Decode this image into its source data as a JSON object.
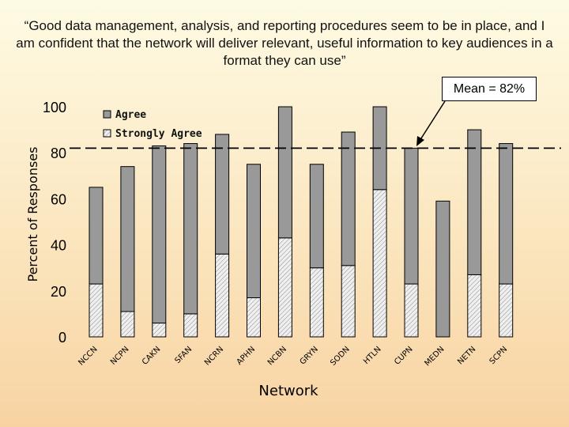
{
  "chart_data": {
    "type": "bar",
    "title": "“Good data management, analysis, and reporting procedures seem to be in place, and I am confident that the network will deliver relevant, useful information to key audiences in a format they can use”",
    "xlabel": "Network",
    "ylabel": "Percent of Responses",
    "ylim": [
      0,
      100
    ],
    "yticks": [
      "0",
      "20",
      "40",
      "60",
      "80",
      "100"
    ],
    "stacked": true,
    "categories": [
      "NCCN",
      "NCPN",
      "CAKN",
      "SFAN",
      "NCRN",
      "APHN",
      "NCBN",
      "GRYN",
      "SODN",
      "HTLN",
      "CUPN",
      "MEDN",
      "NETN",
      "SCPN"
    ],
    "series": [
      {
        "name": "Strongly Agree",
        "color": "#e8e8e8",
        "pattern": "hatched",
        "values": [
          23,
          11,
          6,
          10,
          36,
          17,
          43,
          30,
          31,
          64,
          23,
          0,
          27,
          23
        ]
      },
      {
        "name": "Agree",
        "color": "#999999",
        "values": [
          42,
          63,
          77,
          74,
          52,
          58,
          57,
          45,
          58,
          36,
          59,
          59,
          63,
          61
        ]
      }
    ],
    "legend_position": "top-left",
    "grid": false,
    "reference_line": {
      "label": "Mean = 82%",
      "value": 82,
      "style": "dashed"
    }
  }
}
